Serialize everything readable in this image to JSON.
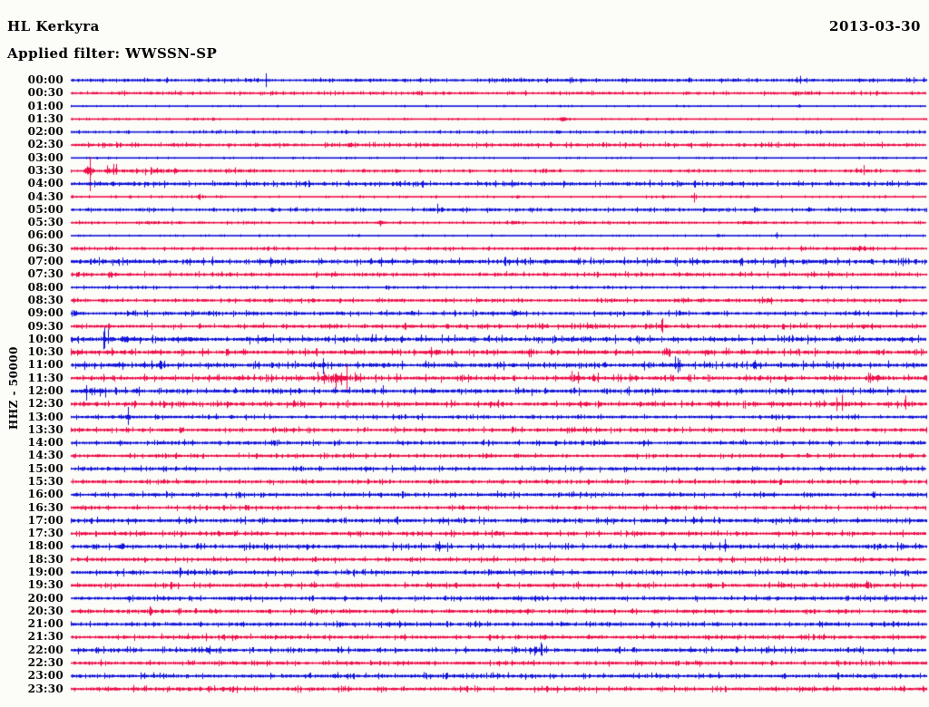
{
  "header": {
    "station": "HL Kerkyra",
    "date": "2013-03-30",
    "filter_label": "Applied filter: WWSSN-SP"
  },
  "y_axis_label": "HHZ - 50000",
  "colors": {
    "trace_blue": "#1013d8",
    "trace_red": "#ee0f4a",
    "text": "#000000",
    "background": "#fcfcf9"
  },
  "chart_data": {
    "type": "line",
    "subtype": "helicorder-seismogram",
    "title": "HL Kerkyra",
    "date": "2013-03-30",
    "filter": "WWSSN-SP",
    "channel_scale_label": "HHZ - 50000",
    "minutes_per_row": 30,
    "rows_start": "00:00",
    "rows_end": "23:30",
    "legend_position": "none",
    "grid": false,
    "events_format": "[position_fraction_of_row, amplitude_px, duration_fraction_of_row]",
    "rows": [
      {
        "label": "00:00",
        "color": "blue",
        "noise": 0.9,
        "events": [
          [
            0.228,
            2,
            0.004
          ],
          [
            0.851,
            1.6,
            0.004
          ]
        ]
      },
      {
        "label": "00:30",
        "color": "red",
        "noise": 0.8,
        "events": [
          [
            0.257,
            1.6,
            0.004
          ],
          [
            0.862,
            2,
            0.004
          ]
        ]
      },
      {
        "label": "01:00",
        "color": "blue",
        "noise": 0.25,
        "events": [
          [
            0.416,
            1.2,
            0.003
          ],
          [
            0.851,
            1.2,
            0.003
          ]
        ]
      },
      {
        "label": "01:30",
        "color": "red",
        "noise": 0.3,
        "events": [
          [
            0.167,
            2.4,
            0.004
          ],
          [
            0.575,
            2.8,
            0.01
          ]
        ]
      },
      {
        "label": "02:00",
        "color": "blue",
        "noise": 0.6,
        "events": [
          [
            0.57,
            1.6,
            0.006
          ]
        ]
      },
      {
        "label": "02:30",
        "color": "red",
        "noise": 1.0,
        "events": []
      },
      {
        "label": "03:00",
        "color": "blue",
        "noise": 0.3,
        "events": []
      },
      {
        "label": "03:30",
        "color": "red",
        "noise": 0.6,
        "events": [
          [
            0.021,
            9,
            0.008
          ],
          [
            0.05,
            2.6,
            0.02
          ],
          [
            0.105,
            1.3,
            0.05
          ],
          [
            0.2,
            0.8,
            0.08
          ],
          [
            0.926,
            2,
            0.012
          ]
        ]
      },
      {
        "label": "04:00",
        "color": "blue",
        "noise": 1.3,
        "events": []
      },
      {
        "label": "04:30",
        "color": "red",
        "noise": 0.45,
        "events": [
          [
            0.151,
            2,
            0.004
          ],
          [
            0.692,
            2,
            0.004
          ],
          [
            0.729,
            1.6,
            0.004
          ]
        ]
      },
      {
        "label": "05:00",
        "color": "blue",
        "noise": 0.8,
        "events": [
          [
            0.167,
            1.6,
            0.006
          ],
          [
            0.43,
            1.7,
            0.018
          ],
          [
            0.49,
            1.6,
            0.012
          ]
        ]
      },
      {
        "label": "05:30",
        "color": "red",
        "noise": 0.6,
        "events": [
          [
            0.363,
            1.5,
            0.006
          ],
          [
            0.517,
            2.2,
            0.01
          ]
        ]
      },
      {
        "label": "06:00",
        "color": "blue",
        "noise": 0.3,
        "events": [
          [
            0.756,
            1.4,
            0.004
          ],
          [
            0.825,
            1.2,
            0.004
          ]
        ]
      },
      {
        "label": "06:30",
        "color": "red",
        "noise": 0.7,
        "events": [
          [
            0.857,
            1.6,
            0.006
          ],
          [
            0.922,
            3.6,
            0.014
          ]
        ]
      },
      {
        "label": "07:00",
        "color": "blue",
        "noise": 1.6,
        "events": [
          [
            0.235,
            2,
            0.01
          ],
          [
            0.83,
            2.4,
            0.016
          ],
          [
            0.858,
            2,
            0.01
          ]
        ]
      },
      {
        "label": "07:30",
        "color": "red",
        "noise": 1.1,
        "events": []
      },
      {
        "label": "08:00",
        "color": "blue",
        "noise": 0.6,
        "events": []
      },
      {
        "label": "08:30",
        "color": "red",
        "noise": 0.9,
        "events": [
          [
            0.814,
            2.2,
            0.008
          ]
        ]
      },
      {
        "label": "09:00",
        "color": "blue",
        "noise": 1.1,
        "events": [
          [
            0.713,
            3.6,
            0.004
          ]
        ]
      },
      {
        "label": "09:30",
        "color": "red",
        "noise": 1.2,
        "events": [
          [
            0.607,
            2.4,
            0.008
          ],
          [
            0.692,
            2,
            0.006
          ],
          [
            0.926,
            2.2,
            0.01
          ]
        ]
      },
      {
        "label": "10:00",
        "color": "blue",
        "noise": 1.7,
        "events": [
          [
            0.04,
            2.6,
            0.015
          ],
          [
            0.066,
            2.6,
            0.02
          ],
          [
            0.135,
            2.2,
            0.01
          ],
          [
            0.225,
            2.2,
            0.01
          ]
        ]
      },
      {
        "label": "10:30",
        "color": "red",
        "noise": 1.5,
        "events": [
          [
            0.007,
            2.6,
            0.008
          ],
          [
            0.427,
            2.2,
            0.012
          ],
          [
            0.533,
            2,
            0.01
          ],
          [
            0.745,
            2.2,
            0.012
          ]
        ]
      },
      {
        "label": "11:00",
        "color": "blue",
        "noise": 1.7,
        "events": [
          [
            0.241,
            2.6,
            0.012
          ],
          [
            0.294,
            3.6,
            0.008
          ],
          [
            0.618,
            2.6,
            0.01
          ],
          [
            0.708,
            2.6,
            0.008
          ]
        ]
      },
      {
        "label": "11:30",
        "color": "red",
        "noise": 1.5,
        "events": [
          [
            0.3,
            4.6,
            0.03
          ],
          [
            0.323,
            3,
            0.02
          ],
          [
            0.59,
            2.6,
            0.01
          ],
          [
            0.613,
            2.6,
            0.008
          ],
          [
            0.94,
            3.6,
            0.018
          ]
        ]
      },
      {
        "label": "12:00",
        "color": "blue",
        "noise": 1.5,
        "events": [
          [
            0.02,
            2.6,
            0.015
          ],
          [
            0.036,
            2.2,
            0.01
          ],
          [
            0.363,
            2.2,
            0.008
          ]
        ]
      },
      {
        "label": "12:30",
        "color": "red",
        "noise": 1.5,
        "events": [
          [
            0.597,
            2.6,
            0.008
          ],
          [
            0.618,
            2.2,
            0.006
          ],
          [
            0.83,
            2.2,
            0.008
          ],
          [
            0.9,
            2.6,
            0.012
          ],
          [
            0.975,
            2.6,
            0.01
          ]
        ]
      },
      {
        "label": "13:00",
        "color": "blue",
        "noise": 1.0,
        "events": [
          [
            0.029,
            2.2,
            0.006
          ],
          [
            0.066,
            2.6,
            0.006
          ],
          [
            0.167,
            2.2,
            0.008
          ]
        ]
      },
      {
        "label": "13:30",
        "color": "red",
        "noise": 1.1,
        "events": []
      },
      {
        "label": "14:00",
        "color": "blue",
        "noise": 1.1,
        "events": []
      },
      {
        "label": "14:30",
        "color": "red",
        "noise": 1.0,
        "events": []
      },
      {
        "label": "15:00",
        "color": "blue",
        "noise": 1.2,
        "events": []
      },
      {
        "label": "15:30",
        "color": "red",
        "noise": 1.0,
        "events": []
      },
      {
        "label": "16:00",
        "color": "blue",
        "noise": 1.2,
        "events": []
      },
      {
        "label": "16:30",
        "color": "red",
        "noise": 1.0,
        "events": []
      },
      {
        "label": "17:00",
        "color": "blue",
        "noise": 1.4,
        "events": []
      },
      {
        "label": "17:30",
        "color": "red",
        "noise": 1.2,
        "events": [
          [
            0.497,
            1.8,
            0.01
          ]
        ]
      },
      {
        "label": "18:00",
        "color": "blue",
        "noise": 1.4,
        "events": [
          [
            0.434,
            2.4,
            0.012
          ],
          [
            0.766,
            2,
            0.01
          ]
        ]
      },
      {
        "label": "18:30",
        "color": "red",
        "noise": 1.1,
        "events": []
      },
      {
        "label": "19:00",
        "color": "blue",
        "noise": 1.4,
        "events": [
          [
            0.135,
            2.4,
            0.012
          ]
        ]
      },
      {
        "label": "19:30",
        "color": "red",
        "noise": 1.3,
        "events": [
          [
            0.932,
            2.8,
            0.015
          ]
        ]
      },
      {
        "label": "20:00",
        "color": "blue",
        "noise": 1.2,
        "events": []
      },
      {
        "label": "20:30",
        "color": "red",
        "noise": 1.1,
        "events": [
          [
            0.092,
            4.6,
            0.004
          ]
        ]
      },
      {
        "label": "21:00",
        "color": "blue",
        "noise": 1.2,
        "events": []
      },
      {
        "label": "21:30",
        "color": "red",
        "noise": 1.2,
        "events": []
      },
      {
        "label": "22:00",
        "color": "blue",
        "noise": 1.3,
        "events": [
          [
            0.161,
            2.2,
            0.012
          ],
          [
            0.545,
            2.8,
            0.015
          ]
        ]
      },
      {
        "label": "22:30",
        "color": "red",
        "noise": 1.1,
        "events": []
      },
      {
        "label": "23:00",
        "color": "blue",
        "noise": 1.2,
        "events": []
      },
      {
        "label": "23:30",
        "color": "red",
        "noise": 1.3,
        "events": []
      }
    ]
  }
}
